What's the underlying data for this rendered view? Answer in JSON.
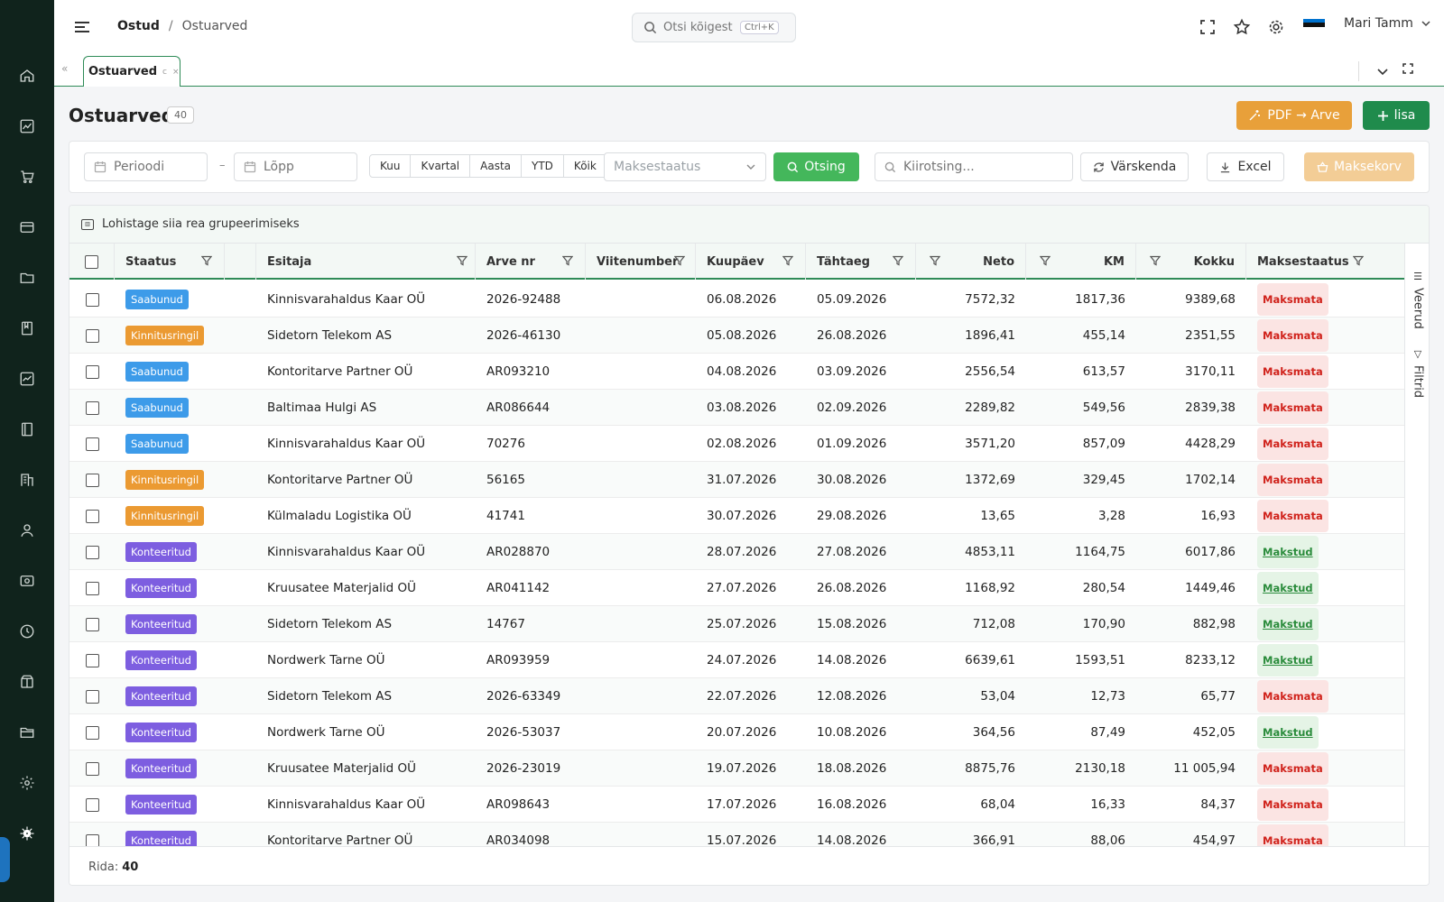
{
  "breadcrumb": {
    "section": "Ostud",
    "separator": "/",
    "current": "Ostuarved"
  },
  "search": {
    "placeholder": "Otsi kõigest...",
    "shortcut": "Ctrl+K"
  },
  "user": {
    "name": "Mari Tamm"
  },
  "tab": {
    "label": "Ostuarved",
    "refresh_glyph": "c",
    "close_glyph": "×"
  },
  "page": {
    "title": "Ostuarved",
    "count": "40",
    "pdf_button": "PDF → Arve",
    "add_button": "lisa"
  },
  "filters": {
    "start_placeholder": "Perioodi",
    "end_placeholder": "Lõpp",
    "dash": "–",
    "presets": [
      "Kuu",
      "Kvartal",
      "Aasta",
      "YTD",
      "Kõik"
    ],
    "payment_status_placeholder": "Maksestaatus",
    "search_button": "Otsing",
    "quick_search_placeholder": "Kiirotsing...",
    "refresh_button": "Värskenda",
    "excel_button": "Excel",
    "cart_button": "Maksekorv"
  },
  "grid": {
    "group_hint": "Lohistage siia rea grupeerimiseks",
    "columns": {
      "status": "Staatus",
      "issuer": "Esitaja",
      "invoice_no": "Arve nr",
      "ref_no": "Viitenumber",
      "date": "Kuupäev",
      "due": "Tähtaeg",
      "net": "Neto",
      "vat": "KM",
      "total": "Kokku",
      "payment": "Maksestaatus"
    },
    "side_tabs": {
      "columns": "Veerud",
      "filters": "Filtrid"
    },
    "footer_label": "Rida:",
    "footer_count": "40",
    "status_colors": {
      "Saabunud": "#3d9be9",
      "Kinnitusringil": "#eb9a32",
      "Konteeritud": "#7d5ee0"
    },
    "rows": [
      {
        "status": "Saabunud",
        "issuer": "Kinnisvarahaldus Kaar OÜ",
        "invoice_no": "2026-92488",
        "date": "06.08.2026",
        "due": "05.09.2026",
        "net": "7572,32",
        "vat": "1817,36",
        "total": "9389,68",
        "payment": "Maksmata"
      },
      {
        "status": "Kinnitusringil",
        "issuer": "Sidetorn Telekom AS",
        "invoice_no": "2026-46130",
        "date": "05.08.2026",
        "due": "26.08.2026",
        "net": "1896,41",
        "vat": "455,14",
        "total": "2351,55",
        "payment": "Maksmata"
      },
      {
        "status": "Saabunud",
        "issuer": "Kontoritarve Partner OÜ",
        "invoice_no": "AR093210",
        "date": "04.08.2026",
        "due": "03.09.2026",
        "net": "2556,54",
        "vat": "613,57",
        "total": "3170,11",
        "payment": "Maksmata"
      },
      {
        "status": "Saabunud",
        "issuer": "Baltimaa Hulgi AS",
        "invoice_no": "AR086644",
        "date": "03.08.2026",
        "due": "02.09.2026",
        "net": "2289,82",
        "vat": "549,56",
        "total": "2839,38",
        "payment": "Maksmata"
      },
      {
        "status": "Saabunud",
        "issuer": "Kinnisvarahaldus Kaar OÜ",
        "invoice_no": "70276",
        "date": "02.08.2026",
        "due": "01.09.2026",
        "net": "3571,20",
        "vat": "857,09",
        "total": "4428,29",
        "payment": "Maksmata"
      },
      {
        "status": "Kinnitusringil",
        "issuer": "Kontoritarve Partner OÜ",
        "invoice_no": "56165",
        "date": "31.07.2026",
        "due": "30.08.2026",
        "net": "1372,69",
        "vat": "329,45",
        "total": "1702,14",
        "payment": "Maksmata"
      },
      {
        "status": "Kinnitusringil",
        "issuer": "Külmaladu Logistika OÜ",
        "invoice_no": "41741",
        "date": "30.07.2026",
        "due": "29.08.2026",
        "net": "13,65",
        "vat": "3,28",
        "total": "16,93",
        "payment": "Maksmata"
      },
      {
        "status": "Konteeritud",
        "issuer": "Kinnisvarahaldus Kaar OÜ",
        "invoice_no": "AR028870",
        "date": "28.07.2026",
        "due": "27.08.2026",
        "net": "4853,11",
        "vat": "1164,75",
        "total": "6017,86",
        "payment": "Makstud"
      },
      {
        "status": "Konteeritud",
        "issuer": "Kruusatee Materjalid OÜ",
        "invoice_no": "AR041142",
        "date": "27.07.2026",
        "due": "26.08.2026",
        "net": "1168,92",
        "vat": "280,54",
        "total": "1449,46",
        "payment": "Makstud"
      },
      {
        "status": "Konteeritud",
        "issuer": "Sidetorn Telekom AS",
        "invoice_no": "14767",
        "date": "25.07.2026",
        "due": "15.08.2026",
        "net": "712,08",
        "vat": "170,90",
        "total": "882,98",
        "payment": "Makstud"
      },
      {
        "status": "Konteeritud",
        "issuer": "Nordwerk Tarne OÜ",
        "invoice_no": "AR093959",
        "date": "24.07.2026",
        "due": "14.08.2026",
        "net": "6639,61",
        "vat": "1593,51",
        "total": "8233,12",
        "payment": "Makstud"
      },
      {
        "status": "Konteeritud",
        "issuer": "Sidetorn Telekom AS",
        "invoice_no": "2026-63349",
        "date": "22.07.2026",
        "due": "12.08.2026",
        "net": "53,04",
        "vat": "12,73",
        "total": "65,77",
        "payment": "Maksmata"
      },
      {
        "status": "Konteeritud",
        "issuer": "Nordwerk Tarne OÜ",
        "invoice_no": "2026-53037",
        "date": "20.07.2026",
        "due": "10.08.2026",
        "net": "364,56",
        "vat": "87,49",
        "total": "452,05",
        "payment": "Makstud"
      },
      {
        "status": "Konteeritud",
        "issuer": "Kruusatee Materjalid OÜ",
        "invoice_no": "2026-23019",
        "date": "19.07.2026",
        "due": "18.08.2026",
        "net": "8875,76",
        "vat": "2130,18",
        "total": "11 005,94",
        "payment": "Maksmata"
      },
      {
        "status": "Konteeritud",
        "issuer": "Kinnisvarahaldus Kaar OÜ",
        "invoice_no": "AR098643",
        "date": "17.07.2026",
        "due": "16.08.2026",
        "net": "68,04",
        "vat": "16,33",
        "total": "84,37",
        "payment": "Maksmata"
      },
      {
        "status": "Konteeritud",
        "issuer": "Kontoritarve Partner OÜ",
        "invoice_no": "AR034098",
        "date": "15.07.2026",
        "due": "14.08.2026",
        "net": "366,91",
        "vat": "88,06",
        "total": "454,97",
        "payment": "Maksmata"
      }
    ]
  },
  "rail_icons": [
    "home-icon",
    "chart-icon",
    "cart-icon",
    "card-icon",
    "folder-icon",
    "book-icon",
    "trend-icon",
    "ledger-icon",
    "building-icon",
    "user-icon",
    "receipt-icon",
    "clock-icon",
    "package-icon",
    "folder-open-icon",
    "settings-icon",
    "gear-icon"
  ]
}
